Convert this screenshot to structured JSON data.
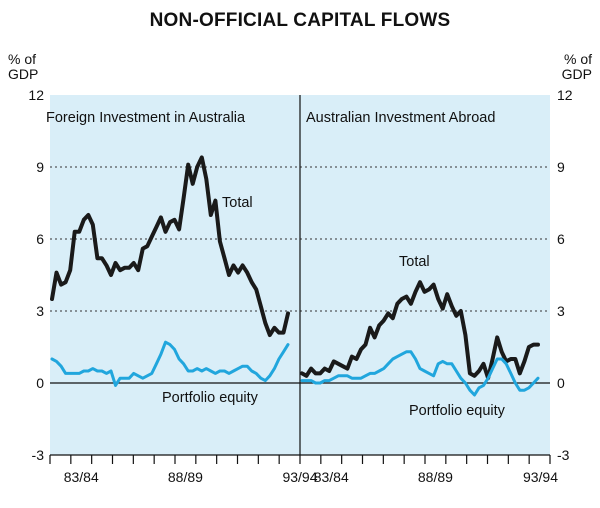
{
  "chart_data": {
    "type": "line",
    "title": "NON-OFFICIAL CAPITAL FLOWS",
    "ylabel_left": "% of GDP",
    "ylabel_right": "% of GDP",
    "unit_lines": [
      "% of",
      "GDP"
    ],
    "ylim": [
      -3,
      12
    ],
    "yticks": [
      "12",
      "9",
      "6",
      "3",
      "0",
      "-3"
    ],
    "ytick_values": [
      12,
      9,
      6,
      3,
      0,
      -3
    ],
    "colors": {
      "total": "#1a1a1a",
      "portfolio": "#21a6dd",
      "background": "#d9eef8",
      "grid": "#333333"
    },
    "panels": [
      {
        "title": "Foreign Investment in Australia",
        "x_tick_labels": [
          "83/84",
          "88/89",
          "93/94"
        ],
        "x_tick_label_index": [
          2,
          7,
          12
        ],
        "n_years": 12,
        "annotations": {
          "total": "Total",
          "portfolio": "Portfolio equity"
        },
        "series": [
          {
            "name": "Total",
            "values": [
              3.5,
              4.6,
              4.1,
              4.2,
              4.7,
              6.3,
              6.3,
              6.8,
              7.0,
              6.6,
              5.2,
              5.2,
              4.9,
              4.5,
              5.0,
              4.7,
              4.8,
              4.8,
              5.0,
              4.7,
              5.6,
              5.7,
              6.1,
              6.5,
              6.9,
              6.3,
              6.7,
              6.8,
              6.4,
              7.7,
              9.1,
              8.3,
              9.0,
              9.4,
              8.5,
              7.0,
              7.6,
              5.9,
              5.2,
              4.5,
              4.9,
              4.6,
              4.9,
              4.6,
              4.2,
              3.9,
              3.2,
              2.5,
              2.0,
              2.3,
              2.1,
              2.1,
              2.9
            ]
          },
          {
            "name": "Portfolio equity",
            "values": [
              1.0,
              0.9,
              0.7,
              0.4,
              0.4,
              0.4,
              0.4,
              0.5,
              0.5,
              0.6,
              0.5,
              0.5,
              0.4,
              0.5,
              -0.1,
              0.2,
              0.2,
              0.2,
              0.4,
              0.3,
              0.2,
              0.3,
              0.4,
              0.8,
              1.2,
              1.7,
              1.6,
              1.4,
              1.0,
              0.8,
              0.5,
              0.5,
              0.6,
              0.5,
              0.6,
              0.5,
              0.4,
              0.5,
              0.5,
              0.4,
              0.5,
              0.6,
              0.7,
              0.7,
              0.5,
              0.4,
              0.2,
              0.1,
              0.3,
              0.6,
              1.0,
              1.3,
              1.6
            ]
          }
        ]
      },
      {
        "title": "Australian Investment Abroad",
        "x_tick_labels": [
          "83/84",
          "88/89",
          "93/94"
        ],
        "x_tick_label_index": [
          2,
          7,
          12
        ],
        "n_years": 12,
        "annotations": {
          "total": "Total",
          "portfolio": "Portfolio equity"
        },
        "series": [
          {
            "name": "Total",
            "values": [
              0.4,
              0.3,
              0.6,
              0.4,
              0.4,
              0.6,
              0.5,
              0.9,
              0.8,
              0.7,
              0.6,
              1.1,
              1.0,
              1.4,
              1.6,
              2.3,
              1.9,
              2.4,
              2.6,
              2.9,
              2.7,
              3.3,
              3.5,
              3.6,
              3.3,
              3.8,
              4.2,
              3.8,
              3.9,
              4.1,
              3.5,
              3.1,
              3.7,
              3.2,
              2.8,
              3.0,
              2.0,
              0.4,
              0.3,
              0.5,
              0.8,
              0.2,
              1.0,
              1.9,
              1.3,
              0.9,
              1.0,
              1.0,
              0.4,
              0.9,
              1.5,
              1.6,
              1.6
            ]
          },
          {
            "name": "Portfolio equity",
            "values": [
              0.1,
              0.1,
              0.1,
              0.0,
              0.0,
              0.1,
              0.1,
              0.2,
              0.3,
              0.3,
              0.3,
              0.2,
              0.2,
              0.2,
              0.3,
              0.4,
              0.4,
              0.5,
              0.6,
              0.8,
              1.0,
              1.1,
              1.2,
              1.3,
              1.3,
              1.0,
              0.6,
              0.5,
              0.4,
              0.3,
              0.8,
              0.9,
              0.8,
              0.8,
              0.5,
              0.2,
              0.0,
              -0.3,
              -0.5,
              -0.2,
              -0.1,
              0.2,
              0.6,
              1.0,
              1.0,
              0.8,
              0.4,
              0.0,
              -0.3,
              -0.3,
              -0.2,
              0.0,
              0.2
            ]
          }
        ]
      }
    ]
  }
}
